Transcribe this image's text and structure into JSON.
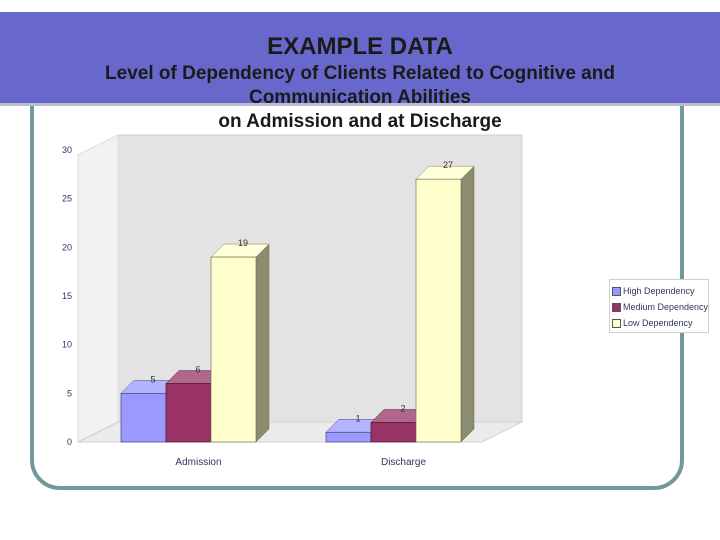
{
  "slide": {
    "title": "EXAMPLE DATA",
    "subtitle": "Level of  Dependency of Clients Related to Cognitive and Communication Abilities on Admission and at Discharge",
    "subtitle_lines": [
      "Level of  Dependency of Clients Related to Cognitive and",
      "Communication Abilities",
      "on Admission and at Discharge"
    ]
  },
  "chart_data": {
    "type": "bar",
    "title": "",
    "xlabel": "",
    "ylabel": "",
    "categories": [
      "Admission",
      "Discharge"
    ],
    "ylim": [
      0,
      30
    ],
    "yticks": [
      0,
      5,
      10,
      15,
      20,
      25,
      30
    ],
    "grid": false,
    "three_d": true,
    "legend_position": "right",
    "series": [
      {
        "name": "High Dependency",
        "values": [
          5,
          1
        ],
        "color": "#9999ff"
      },
      {
        "name": "Medium Dependency",
        "values": [
          6,
          2
        ],
        "color": "#993366"
      },
      {
        "name": "Low Dependency",
        "values": [
          19,
          27
        ],
        "color": "#ffffcc"
      }
    ]
  }
}
